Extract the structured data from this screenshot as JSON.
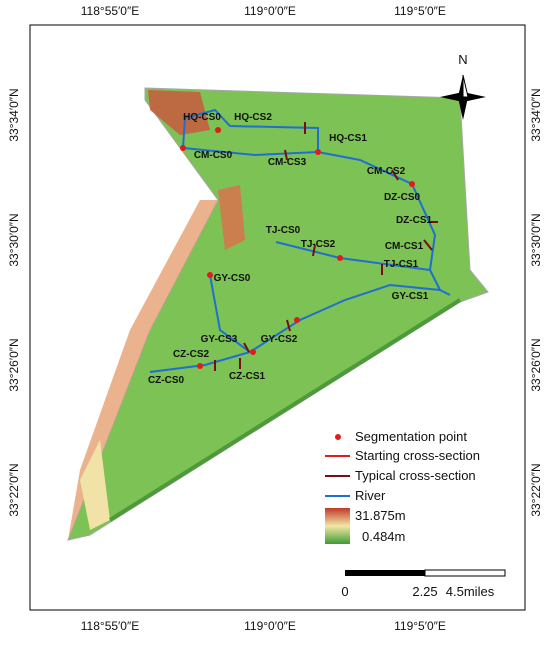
{
  "graticule": {
    "longitudes": [
      "118°55′0″E",
      "119°0′0″E",
      "119°5′0″E"
    ],
    "latitudes": [
      "33°34′0″N",
      "33°30′0″N",
      "33°26′0″N",
      "33°22′0″N"
    ]
  },
  "north": "N",
  "sections": [
    "HQ-CS0",
    "HQ-CS2",
    "HQ-CS1",
    "CM-CS0",
    "CM-CS3",
    "CM-CS2",
    "DZ-CS0",
    "DZ-CS1",
    "TJ-CS0",
    "TJ-CS2",
    "CM-CS1",
    "TJ-CS1",
    "GY-CS0",
    "GY-CS1",
    "GY-CS3",
    "GY-CS2",
    "CZ-CS2",
    "CZ-CS1",
    "CZ-CS0"
  ],
  "legend": {
    "point": "Segmentation point",
    "starting": "Starting cross-section",
    "typical": "Typical cross-section",
    "river": "River",
    "high": "31.875m",
    "low": "0.484m"
  },
  "scale": {
    "labels": [
      "0",
      "2.25",
      "4.5miles"
    ]
  }
}
